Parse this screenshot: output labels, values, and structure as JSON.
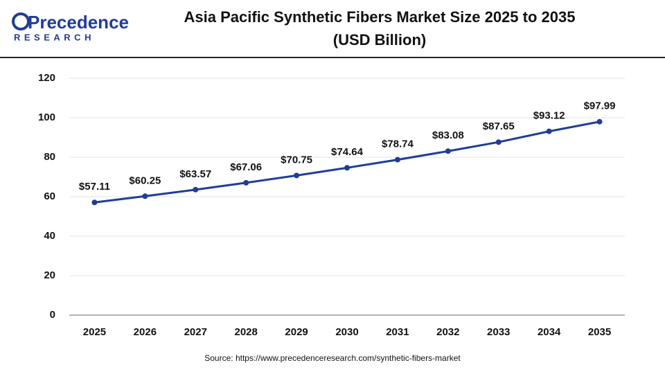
{
  "logo": {
    "name": "Precedence",
    "tagline": "RESEARCH"
  },
  "chart_data": {
    "type": "line",
    "title": "Asia Pacific Synthetic Fibers Market Size 2025 to 2035",
    "subtitle": "(USD Billion)",
    "categories": [
      "2025",
      "2026",
      "2027",
      "2028",
      "2029",
      "2030",
      "2031",
      "2032",
      "2033",
      "2034",
      "2035"
    ],
    "values": [
      57.11,
      60.25,
      63.57,
      67.06,
      70.75,
      74.64,
      78.74,
      83.08,
      87.65,
      93.12,
      97.99
    ],
    "value_labels": [
      "$57.11",
      "$60.25",
      "$63.57",
      "$67.06",
      "$70.75",
      "$74.64",
      "$78.74",
      "$83.08",
      "$87.65",
      "$93.12",
      "$97.99"
    ],
    "color": "#1f3d99",
    "ylim": [
      0,
      120
    ],
    "yticks": [
      0,
      20,
      40,
      60,
      80,
      100,
      120
    ],
    "grid": true,
    "source": "Source: https://www.precedenceresearch.com/synthetic-fibers-market"
  }
}
